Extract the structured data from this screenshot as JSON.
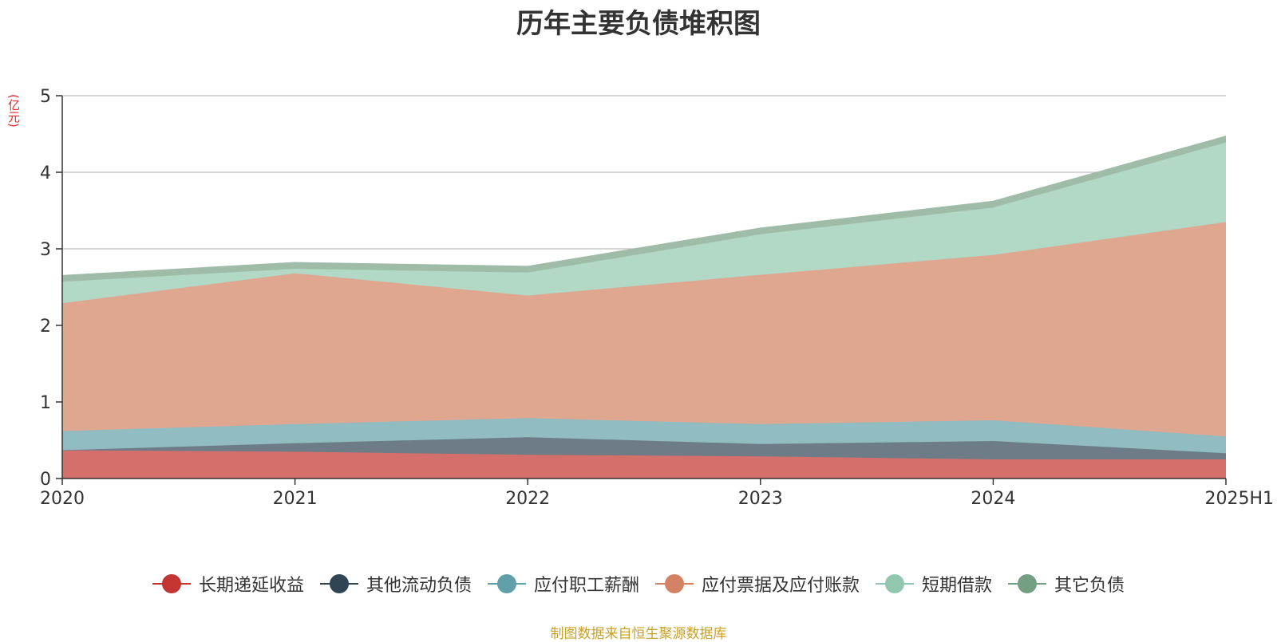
{
  "title": "历年主要负债堆积图",
  "unit_label": "(亿元)",
  "source_note": "制图数据来自恒生聚源数据库",
  "chart_data": {
    "type": "area",
    "stacked": true,
    "title": "历年主要负债堆积图",
    "ylabel": "(亿元)",
    "xlabel": "",
    "x": [
      "2020",
      "2021",
      "2022",
      "2023",
      "2024",
      "2025H1"
    ],
    "yticks": [
      "0",
      "1",
      "2",
      "3",
      "4",
      "5"
    ],
    "ylim": [
      0,
      5
    ],
    "grid": true,
    "legend_position": "bottom",
    "series": [
      {
        "name": "长期递延收益",
        "color": "#c23531",
        "area_color": "#d46f6c",
        "values": [
          0.37,
          0.35,
          0.31,
          0.29,
          0.25,
          0.25
        ]
      },
      {
        "name": "其他流动负债",
        "color": "#2f4554",
        "area_color": "#6d7c87",
        "values": [
          0.0,
          0.11,
          0.23,
          0.16,
          0.24,
          0.08
        ]
      },
      {
        "name": "应付职工薪酬",
        "color": "#61a0a8",
        "area_color": "#90bcc2",
        "values": [
          0.25,
          0.25,
          0.25,
          0.26,
          0.27,
          0.22
        ]
      },
      {
        "name": "应付票据及应付账款",
        "color": "#d48265",
        "area_color": "#dfa690",
        "values": [
          1.67,
          1.97,
          1.6,
          1.95,
          2.16,
          2.8
        ]
      },
      {
        "name": "短期借款",
        "color": "#91c7ae",
        "area_color": "#b2d8c6",
        "values": [
          0.28,
          0.06,
          0.3,
          0.53,
          0.62,
          1.04
        ]
      },
      {
        "name": "其它负债",
        "color": "#749f83",
        "area_color": "#9fbca8",
        "values": [
          0.08,
          0.08,
          0.08,
          0.08,
          0.08,
          0.08
        ]
      }
    ]
  }
}
